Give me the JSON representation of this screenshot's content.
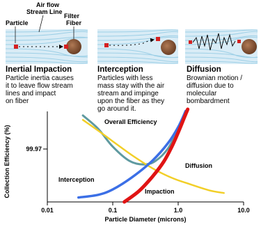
{
  "panels": [
    {
      "title": "Inertial Impaction",
      "desc": [
        "Particle inertia causes",
        "it to leave flow stream",
        "lines and impact",
        "on fiber"
      ]
    },
    {
      "title": "Interception",
      "desc": [
        "Particles with less",
        "mass stay with the air",
        "stream and impinge",
        "upon the fiber as they",
        "go around it."
      ]
    },
    {
      "title": "Diffusion",
      "desc": [
        "Brownian motion /",
        "diffusion due to",
        "molecular",
        "bombardment"
      ]
    }
  ],
  "top_labels": {
    "air_flow": "Air flow",
    "stream_line": "Stream Line",
    "filter": "Filter",
    "fiber": "Fiber",
    "particle": "Particle"
  },
  "colors": {
    "stream": "#9ccfe6",
    "panel_bg": "#d9ecf6",
    "fiber": "#8b5a3c",
    "particle": "#d42020",
    "overall": "#5f9aa0",
    "diffusion": "#f2cf28",
    "interception": "#3b6fe6",
    "impaction": "#e01414"
  },
  "chart_data": {
    "type": "line",
    "xlabel": "Particle Diameter (microns)",
    "ylabel": "Collection Efficiency (%)",
    "x_scale": "log",
    "xlim": [
      0.01,
      10.0
    ],
    "x_ticks": [
      "0.01",
      "0.1",
      "1.0",
      "10.0"
    ],
    "y_ticks": [
      "99.97"
    ],
    "series": [
      {
        "name": "Overall Efficiency",
        "x": [
          0.035,
          0.06,
          0.1,
          0.18,
          0.3,
          0.45,
          0.7,
          1.0,
          1.4
        ],
        "y": [
          0.97,
          0.82,
          0.62,
          0.46,
          0.42,
          0.46,
          0.6,
          0.82,
          1.02
        ]
      },
      {
        "name": "Diffusion",
        "x": [
          0.035,
          0.06,
          0.1,
          0.2,
          0.4,
          0.8,
          1.5,
          3.0,
          5.0
        ],
        "y": [
          0.92,
          0.8,
          0.68,
          0.52,
          0.38,
          0.27,
          0.2,
          0.13,
          0.1
        ]
      },
      {
        "name": "Interception",
        "x": [
          0.03,
          0.06,
          0.1,
          0.2,
          0.4,
          0.7,
          1.0,
          1.3
        ],
        "y": [
          0.05,
          0.08,
          0.14,
          0.28,
          0.46,
          0.66,
          0.84,
          1.02
        ]
      },
      {
        "name": "Impaction",
        "x": [
          0.15,
          0.25,
          0.4,
          0.6,
          0.8,
          1.0,
          1.2,
          1.4
        ],
        "y": [
          0.0,
          0.12,
          0.28,
          0.45,
          0.62,
          0.78,
          0.92,
          1.04
        ]
      }
    ]
  }
}
